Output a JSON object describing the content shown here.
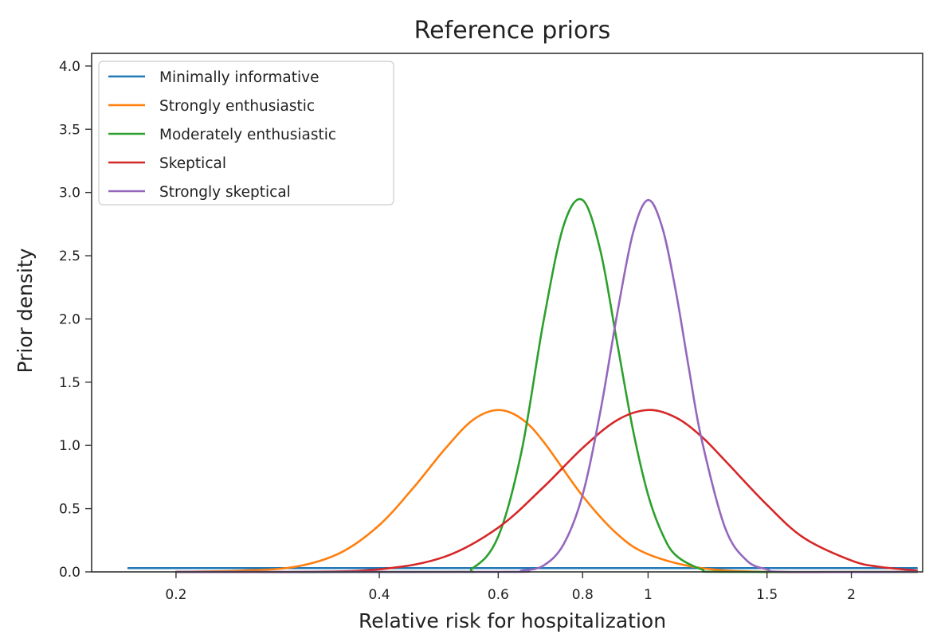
{
  "chart_data": {
    "type": "line",
    "title": "Reference priors",
    "xlabel": "Relative risk for hospitalization",
    "ylabel": "Prior density",
    "x_scale": "log",
    "xlim": [
      0.15,
      2.55
    ],
    "ylim": [
      0,
      4.1
    ],
    "x_ticks": [
      {
        "value": 0.2,
        "label": "0.2"
      },
      {
        "value": 0.4,
        "label": "0.4"
      },
      {
        "value": 0.6,
        "label": "0.6"
      },
      {
        "value": 0.8,
        "label": "0.8"
      },
      {
        "value": 1,
        "label": "1"
      },
      {
        "value": 1.5,
        "label": "1.5"
      },
      {
        "value": 2,
        "label": "2"
      }
    ],
    "y_ticks": [
      {
        "value": 0.0,
        "label": "0.0"
      },
      {
        "value": 0.5,
        "label": "0.5"
      },
      {
        "value": 1.0,
        "label": "1.0"
      },
      {
        "value": 1.5,
        "label": "1.5"
      },
      {
        "value": 2.0,
        "label": "2.0"
      },
      {
        "value": 2.5,
        "label": "2.5"
      },
      {
        "value": 3.0,
        "label": "3.0"
      },
      {
        "value": 3.5,
        "label": "3.5"
      },
      {
        "value": 4.0,
        "label": "4.0"
      }
    ],
    "grid": false,
    "legend_position": "top-left",
    "series": [
      {
        "name": "Minimally informative",
        "color": "#1f77b4",
        "x": [
          0.17,
          0.2,
          0.3,
          0.4,
          0.5,
          0.6,
          0.7,
          0.8,
          0.9,
          1.0,
          1.2,
          1.5,
          2.0,
          2.5
        ],
        "y": [
          0.03,
          0.03,
          0.03,
          0.03,
          0.03,
          0.03,
          0.03,
          0.03,
          0.03,
          0.03,
          0.03,
          0.03,
          0.03,
          0.03
        ]
      },
      {
        "name": "Strongly enthusiastic",
        "color": "#ff7f0e",
        "x": [
          0.2,
          0.25,
          0.3,
          0.35,
          0.4,
          0.45,
          0.5,
          0.55,
          0.6,
          0.65,
          0.7,
          0.8,
          0.9,
          1.0,
          1.2,
          1.5,
          2.0,
          2.5
        ],
        "y": [
          0.0,
          0.01,
          0.04,
          0.15,
          0.37,
          0.67,
          0.97,
          1.2,
          1.28,
          1.21,
          1.03,
          0.6,
          0.3,
          0.14,
          0.03,
          0.0,
          0.0,
          0.0
        ]
      },
      {
        "name": "Moderately enthusiastic",
        "color": "#2ca02c",
        "x": [
          0.2,
          0.5,
          0.55,
          0.6,
          0.65,
          0.7,
          0.75,
          0.8,
          0.85,
          0.9,
          0.95,
          1.0,
          1.05,
          1.1,
          1.2,
          1.3,
          2.5
        ],
        "y": [
          0.0,
          0.0,
          0.03,
          0.28,
          0.96,
          1.98,
          2.74,
          2.94,
          2.54,
          1.81,
          1.12,
          0.61,
          0.3,
          0.13,
          0.02,
          0.0,
          0.0
        ]
      },
      {
        "name": "Skeptical",
        "color": "#d62728",
        "x": [
          0.2,
          0.3,
          0.4,
          0.5,
          0.6,
          0.7,
          0.8,
          0.9,
          1.0,
          1.1,
          1.2,
          1.3,
          1.5,
          1.7,
          2.0,
          2.2,
          2.5
        ],
        "y": [
          0.0,
          0.0,
          0.02,
          0.12,
          0.35,
          0.67,
          0.98,
          1.2,
          1.28,
          1.22,
          1.07,
          0.88,
          0.53,
          0.27,
          0.09,
          0.04,
          0.01
        ]
      },
      {
        "name": "Strongly skeptical",
        "color": "#9467bd",
        "x": [
          0.2,
          0.6,
          0.65,
          0.7,
          0.75,
          0.8,
          0.85,
          0.9,
          0.95,
          1.0,
          1.05,
          1.1,
          1.15,
          1.2,
          1.3,
          1.4,
          1.5,
          1.6,
          2.5
        ],
        "y": [
          0.0,
          0.0,
          0.01,
          0.05,
          0.22,
          0.61,
          1.27,
          2.04,
          2.68,
          2.94,
          2.72,
          2.21,
          1.6,
          1.05,
          0.35,
          0.09,
          0.02,
          0.0,
          0.0
        ]
      }
    ]
  }
}
